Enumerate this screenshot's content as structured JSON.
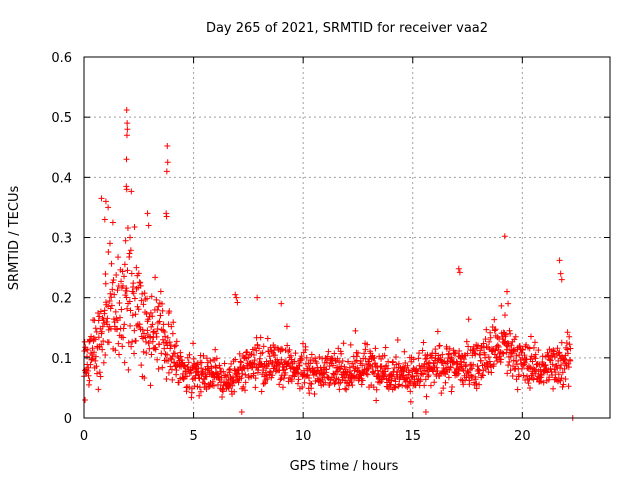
{
  "chart_data": {
    "type": "scatter",
    "title": "Day 265 of 2021, SRMTID for receiver vaa2",
    "xlabel": "GPS time / hours",
    "ylabel": "SRMTID / TECUs",
    "xlim": [
      0,
      24
    ],
    "ylim": [
      0,
      0.6
    ],
    "x_ticks": [
      0,
      5,
      10,
      15,
      20
    ],
    "y_ticks": [
      0,
      0.1,
      0.2,
      0.3,
      0.4,
      0.5,
      0.6
    ],
    "x_tick_labels": [
      "0",
      "5",
      "10",
      "15",
      "20"
    ],
    "y_tick_labels": [
      "0",
      "0.1",
      "0.2",
      "0.3",
      "0.4",
      "0.5",
      "0.6"
    ],
    "grid": true,
    "marker": "plus",
    "color": "#ff0000",
    "series": [
      {
        "name": "SRMTID",
        "profile": [
          {
            "x": 0.0,
            "level": 0.08,
            "spread": 0.03
          },
          {
            "x": 0.5,
            "level": 0.12,
            "spread": 0.05
          },
          {
            "x": 1.0,
            "level": 0.18,
            "spread": 0.08
          },
          {
            "x": 1.5,
            "level": 0.17,
            "spread": 0.07
          },
          {
            "x": 2.0,
            "level": 0.2,
            "spread": 0.09
          },
          {
            "x": 2.5,
            "level": 0.18,
            "spread": 0.07
          },
          {
            "x": 3.0,
            "level": 0.15,
            "spread": 0.06
          },
          {
            "x": 3.5,
            "level": 0.14,
            "spread": 0.06
          },
          {
            "x": 4.0,
            "level": 0.11,
            "spread": 0.04
          },
          {
            "x": 4.5,
            "level": 0.08,
            "spread": 0.025
          },
          {
            "x": 5.0,
            "level": 0.075,
            "spread": 0.025
          },
          {
            "x": 6.0,
            "level": 0.075,
            "spread": 0.025
          },
          {
            "x": 6.5,
            "level": 0.06,
            "spread": 0.02
          },
          {
            "x": 7.0,
            "level": 0.07,
            "spread": 0.03
          },
          {
            "x": 8.0,
            "level": 0.09,
            "spread": 0.03
          },
          {
            "x": 10.0,
            "level": 0.08,
            "spread": 0.025
          },
          {
            "x": 12.0,
            "level": 0.075,
            "spread": 0.025
          },
          {
            "x": 13.0,
            "level": 0.085,
            "spread": 0.03
          },
          {
            "x": 15.0,
            "level": 0.07,
            "spread": 0.025
          },
          {
            "x": 16.5,
            "level": 0.09,
            "spread": 0.03
          },
          {
            "x": 17.0,
            "level": 0.085,
            "spread": 0.03
          },
          {
            "x": 18.0,
            "level": 0.09,
            "spread": 0.03
          },
          {
            "x": 19.0,
            "level": 0.12,
            "spread": 0.04
          },
          {
            "x": 20.0,
            "level": 0.09,
            "spread": 0.03
          },
          {
            "x": 21.0,
            "level": 0.08,
            "spread": 0.03
          },
          {
            "x": 22.0,
            "level": 0.1,
            "spread": 0.035
          },
          {
            "x": 22.2,
            "level": 0.1,
            "spread": 0.035
          }
        ],
        "x_start": 0.0,
        "x_end": 22.2,
        "n_points": 1500,
        "outliers": [
          {
            "x": 1.95,
            "y": 0.512
          },
          {
            "x": 1.97,
            "y": 0.49
          },
          {
            "x": 1.98,
            "y": 0.48
          },
          {
            "x": 1.96,
            "y": 0.47
          },
          {
            "x": 1.94,
            "y": 0.43
          },
          {
            "x": 1.93,
            "y": 0.385
          },
          {
            "x": 1.95,
            "y": 0.38
          },
          {
            "x": 3.8,
            "y": 0.452
          },
          {
            "x": 3.82,
            "y": 0.425
          },
          {
            "x": 3.78,
            "y": 0.41
          },
          {
            "x": 3.75,
            "y": 0.34
          },
          {
            "x": 3.77,
            "y": 0.335
          },
          {
            "x": 0.8,
            "y": 0.365
          },
          {
            "x": 1.0,
            "y": 0.36
          },
          {
            "x": 1.1,
            "y": 0.35
          },
          {
            "x": 0.95,
            "y": 0.33
          },
          {
            "x": 2.9,
            "y": 0.34
          },
          {
            "x": 2.95,
            "y": 0.32
          },
          {
            "x": 2.1,
            "y": 0.3
          },
          {
            "x": 19.2,
            "y": 0.302
          },
          {
            "x": 17.1,
            "y": 0.248
          },
          {
            "x": 17.15,
            "y": 0.242
          },
          {
            "x": 21.7,
            "y": 0.262
          },
          {
            "x": 21.75,
            "y": 0.24
          },
          {
            "x": 21.8,
            "y": 0.23
          },
          {
            "x": 6.9,
            "y": 0.205
          },
          {
            "x": 6.95,
            "y": 0.2
          },
          {
            "x": 7.0,
            "y": 0.192
          },
          {
            "x": 7.9,
            "y": 0.2
          },
          {
            "x": 9.0,
            "y": 0.19
          },
          {
            "x": 19.3,
            "y": 0.21
          },
          {
            "x": 19.35,
            "y": 0.19
          },
          {
            "x": 22.3,
            "y": 0.0
          },
          {
            "x": 7.2,
            "y": 0.01
          },
          {
            "x": 15.6,
            "y": 0.01
          },
          {
            "x": 0.05,
            "y": 0.03
          }
        ]
      }
    ]
  }
}
